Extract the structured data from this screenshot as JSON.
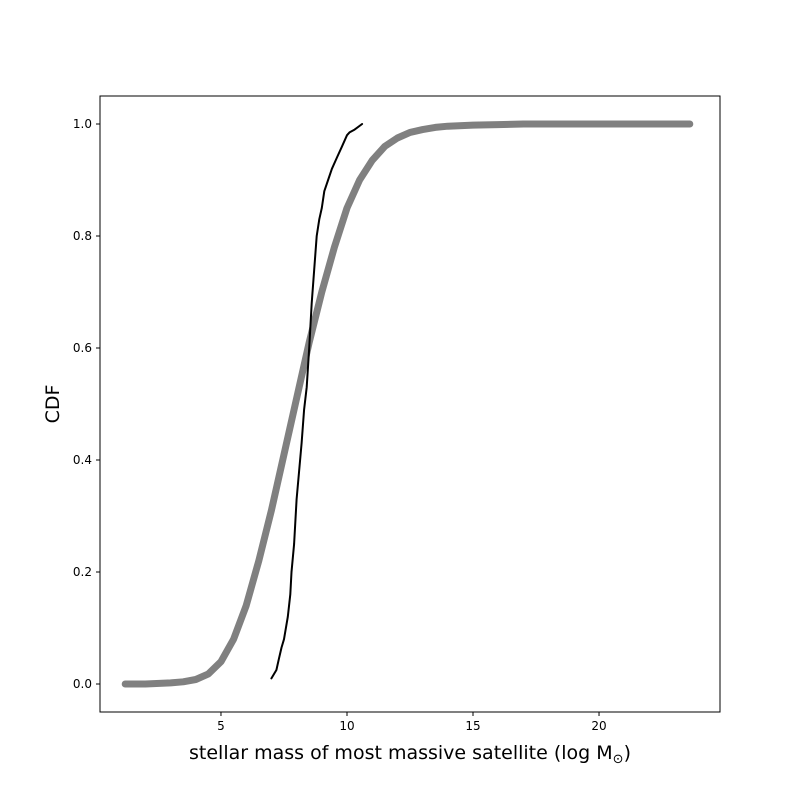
{
  "chart_data": {
    "type": "line",
    "title": "",
    "xlabel": "stellar mass of most massive satellite (log M",
    "xlabel_subscript": "⊙",
    "xlabel_close": ")",
    "ylabel": "CDF",
    "xlim": [
      0.2,
      24.8
    ],
    "ylim": [
      -0.05,
      1.05
    ],
    "xticks": [
      5,
      10,
      15,
      20
    ],
    "yticks": [
      0.0,
      0.2,
      0.4,
      0.6,
      0.8,
      1.0
    ],
    "ytick_labels": [
      "0.0",
      "0.2",
      "0.4",
      "0.6",
      "0.8",
      "1.0"
    ],
    "grid": false,
    "legend": "none",
    "series": [
      {
        "color": "#808080",
        "style": "thick",
        "x": [
          1.2,
          2.0,
          3.0,
          3.5,
          4.0,
          4.5,
          5.0,
          5.5,
          6.0,
          6.5,
          7.0,
          7.5,
          8.0,
          8.5,
          9.0,
          9.5,
          10.0,
          10.5,
          11.0,
          11.5,
          12.0,
          12.5,
          13.0,
          13.5,
          14.0,
          15.0,
          16.0,
          17.0,
          18.0,
          20.0,
          22.0,
          23.6
        ],
        "y": [
          0.0,
          0.0,
          0.002,
          0.004,
          0.008,
          0.018,
          0.04,
          0.08,
          0.14,
          0.22,
          0.31,
          0.41,
          0.51,
          0.61,
          0.7,
          0.78,
          0.85,
          0.9,
          0.935,
          0.96,
          0.975,
          0.985,
          0.99,
          0.994,
          0.996,
          0.998,
          0.999,
          1.0,
          1.0,
          1.0,
          1.0,
          1.0
        ]
      },
      {
        "color": "#000000",
        "style": "thin",
        "x": [
          7.0,
          7.2,
          7.3,
          7.4,
          7.5,
          7.65,
          7.75,
          7.8,
          7.9,
          8.0,
          8.1,
          8.2,
          8.3,
          8.4,
          8.5,
          8.6,
          8.7,
          8.8,
          8.9,
          9.0,
          9.1,
          9.25,
          9.4,
          9.6,
          9.8,
          10.0,
          10.1,
          10.3,
          10.6
        ],
        "y": [
          0.01,
          0.025,
          0.045,
          0.065,
          0.08,
          0.12,
          0.16,
          0.2,
          0.25,
          0.33,
          0.38,
          0.43,
          0.49,
          0.53,
          0.6,
          0.68,
          0.74,
          0.8,
          0.83,
          0.85,
          0.88,
          0.9,
          0.92,
          0.94,
          0.96,
          0.98,
          0.985,
          0.99,
          1.0
        ]
      }
    ]
  }
}
